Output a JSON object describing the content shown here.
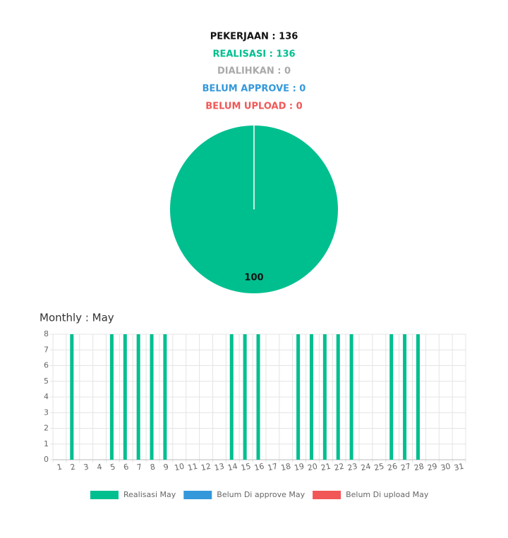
{
  "header": {
    "lines": [
      "PEKERJAAN : 136",
      "REALISASI : 136",
      "DIALIHKAN : 0",
      "BELUM APPROVE : 0",
      "BELUM UPLOAD : 0"
    ]
  },
  "chart_data": [
    {
      "type": "pie",
      "values": [
        100
      ],
      "color": "#00bf8f"
    },
    {
      "type": "bar",
      "title": "Monthly : May",
      "categories": [
        "1",
        "2",
        "3",
        "4",
        "5",
        "6",
        "7",
        "8",
        "9",
        "10",
        "11",
        "12",
        "13",
        "14",
        "15",
        "16",
        "17",
        "18",
        "19",
        "20",
        "21",
        "22",
        "23",
        "24",
        "25",
        "26",
        "27",
        "28",
        "29",
        "30",
        "31"
      ],
      "series": [
        {
          "name": "Realisasi May",
          "color": "#00bf8f",
          "values": [
            0,
            8,
            0,
            0,
            8,
            8,
            8,
            8,
            8,
            0,
            0,
            0,
            0,
            8,
            8,
            8,
            0,
            0,
            8,
            8,
            8,
            8,
            8,
            0,
            0,
            8,
            8,
            8,
            0,
            0,
            0
          ]
        },
        {
          "name": "Belum Di approve May",
          "color": "#3498db",
          "values": [
            0,
            0,
            0,
            0,
            0,
            0,
            0,
            0,
            0,
            0,
            0,
            0,
            0,
            0,
            0,
            0,
            0,
            0,
            0,
            0,
            0,
            0,
            0,
            0,
            0,
            0,
            0,
            0,
            0,
            0,
            0
          ]
        },
        {
          "name": "Belum Di upload May",
          "color": "#f25757",
          "values": [
            0,
            0,
            0,
            0,
            0,
            0,
            0,
            0,
            0,
            0,
            0,
            0,
            0,
            0,
            0,
            0,
            0,
            0,
            0,
            0,
            0,
            0,
            0,
            0,
            0,
            0,
            0,
            0,
            0,
            0,
            0
          ]
        }
      ],
      "ylim": [
        0,
        8
      ],
      "yticks": [
        0,
        1,
        2,
        3,
        4,
        5,
        6,
        7,
        8
      ],
      "grid": true,
      "legend": "bottom"
    }
  ]
}
